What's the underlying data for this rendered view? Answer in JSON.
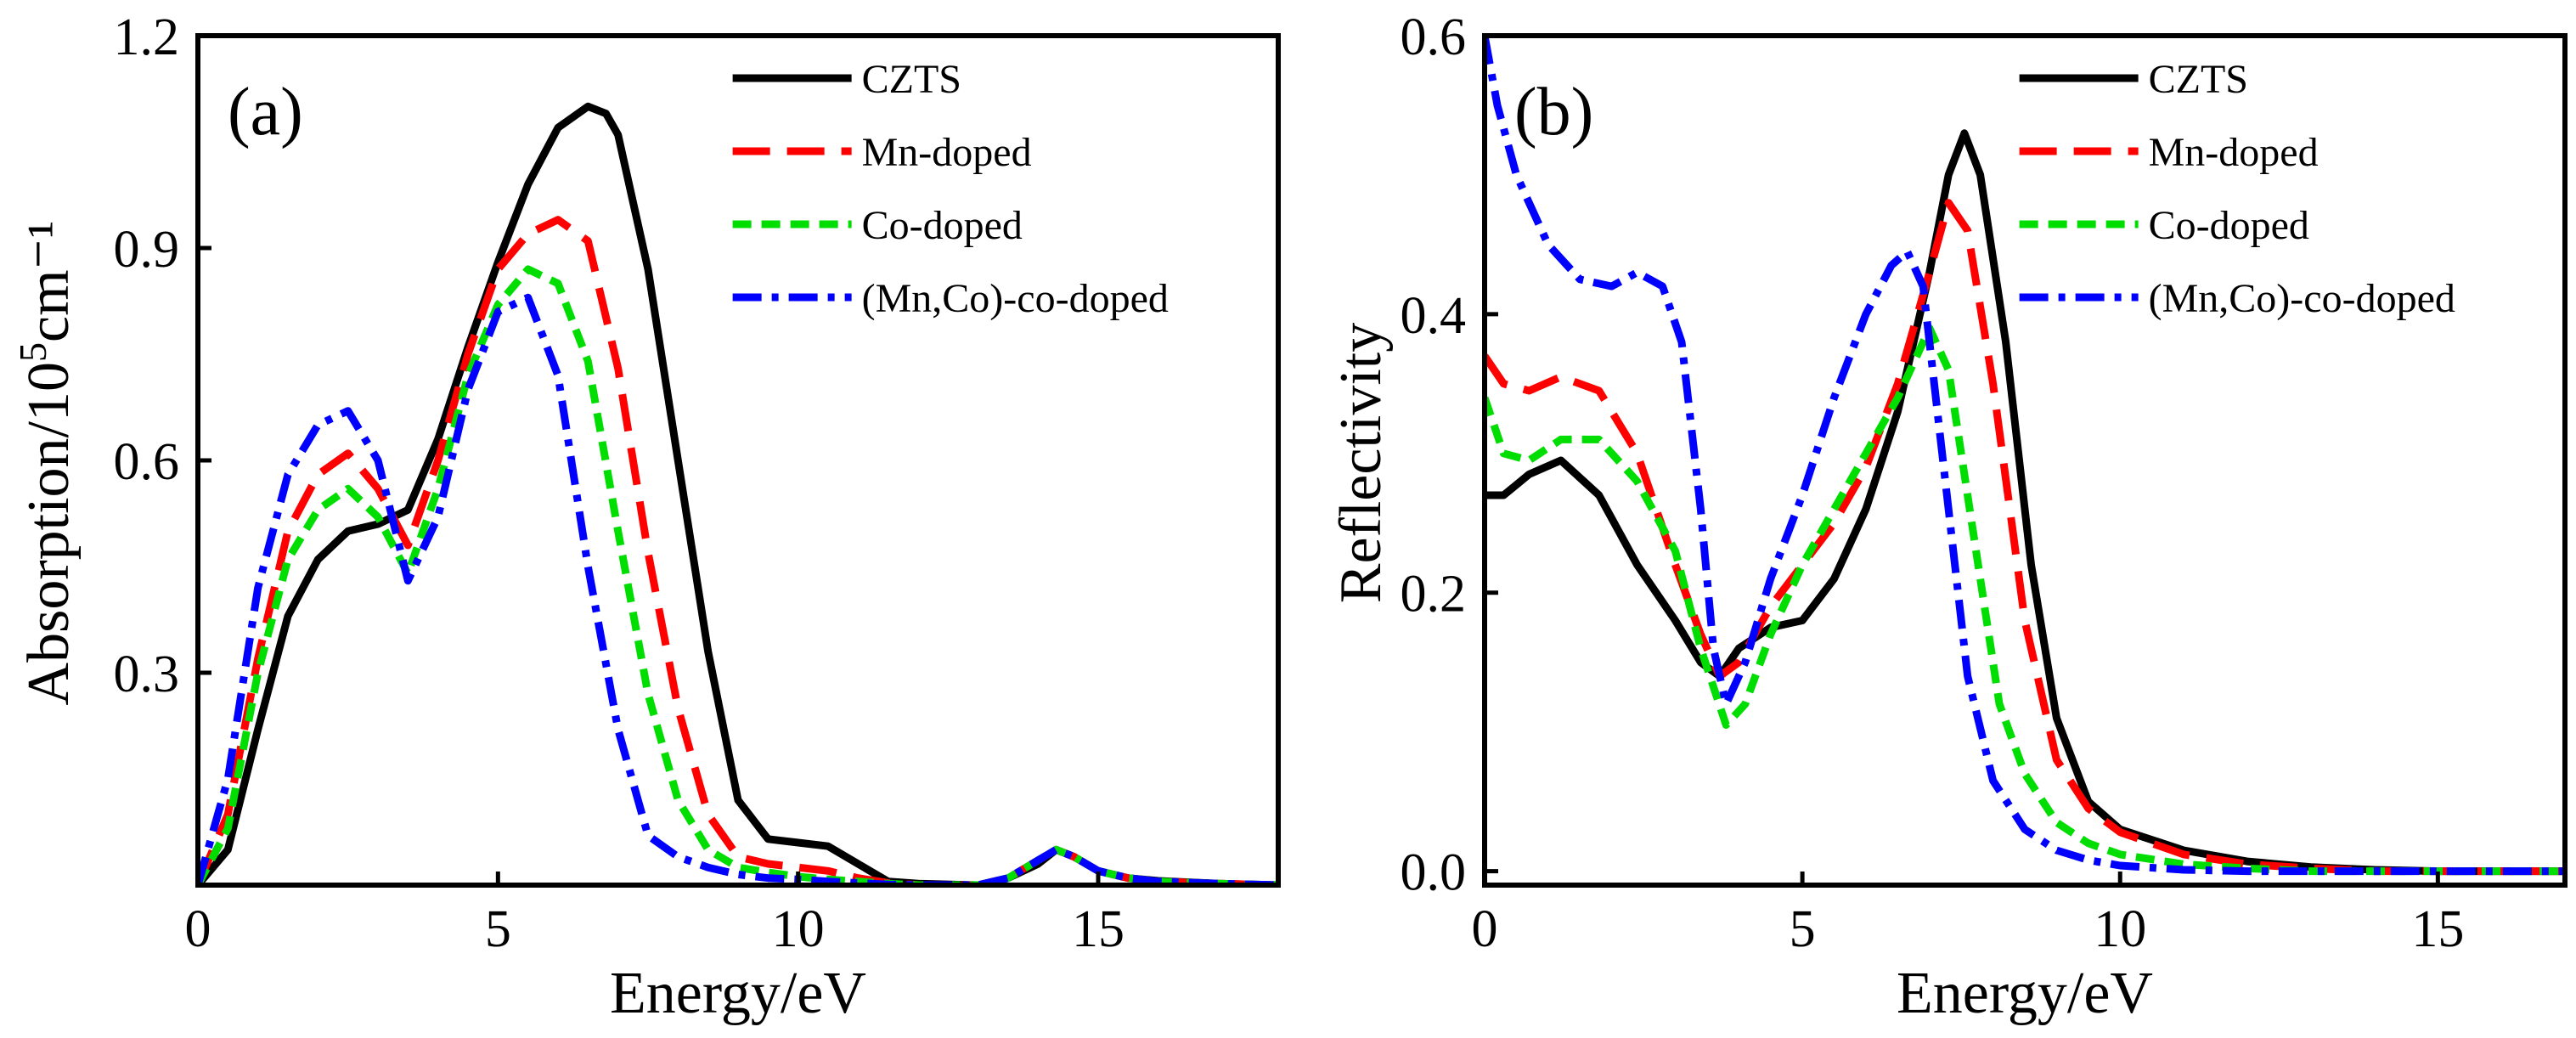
{
  "chart_data": [
    {
      "type": "line",
      "panel_label": "(a)",
      "xlabel": "Energy/eV",
      "ylabel_main": "Absorption/10",
      "ylabel_sup": "5",
      "ylabel_tail": "cm⁻¹",
      "xlim": [
        0,
        18
      ],
      "ylim": [
        0,
        1.2
      ],
      "xticks": [
        0,
        5,
        10,
        15
      ],
      "xtick_labels": [
        "0",
        "5",
        "10",
        "15"
      ],
      "yticks": [
        0.3,
        0.6,
        0.9,
        1.2
      ],
      "ytick_labels": [
        "0.3",
        "0.6",
        "0.9",
        "1.2"
      ],
      "legend_position": "top-right",
      "series": [
        {
          "name": "CZTS",
          "color": "#000000",
          "dash": "solid",
          "x": [
            0,
            0.5,
            1,
            1.5,
            2,
            2.5,
            3,
            3.5,
            4,
            4.5,
            5,
            5.5,
            6,
            6.5,
            6.8,
            7,
            7.5,
            8,
            8.5,
            9,
            9.5,
            10,
            10.5,
            11,
            11.5,
            12,
            13,
            13.5,
            14,
            14.3,
            14.6,
            15,
            15.5,
            16,
            17,
            18
          ],
          "y": [
            0.0,
            0.05,
            0.22,
            0.38,
            0.46,
            0.5,
            0.51,
            0.53,
            0.63,
            0.76,
            0.88,
            0.99,
            1.07,
            1.1,
            1.09,
            1.06,
            0.87,
            0.6,
            0.33,
            0.12,
            0.065,
            0.06,
            0.055,
            0.03,
            0.005,
            0.002,
            0.0,
            0.01,
            0.03,
            0.05,
            0.04,
            0.02,
            0.01,
            0.006,
            0.002,
            0.0
          ]
        },
        {
          "name": "Mn-doped",
          "color": "#ff0000",
          "dash": "longdash",
          "x": [
            0,
            0.5,
            1,
            1.5,
            2,
            2.5,
            3,
            3.5,
            4,
            4.5,
            5,
            5.5,
            6,
            6.5,
            7,
            7.5,
            8,
            8.5,
            9,
            9.5,
            10,
            10.5,
            11,
            11.5,
            12,
            13,
            13.5,
            14,
            14.3,
            14.6,
            15,
            15.5,
            16,
            17,
            18
          ],
          "y": [
            0.0,
            0.1,
            0.32,
            0.5,
            0.58,
            0.61,
            0.56,
            0.48,
            0.6,
            0.75,
            0.87,
            0.92,
            0.94,
            0.91,
            0.73,
            0.47,
            0.25,
            0.1,
            0.04,
            0.03,
            0.025,
            0.02,
            0.01,
            0.003,
            0.0,
            0.0,
            0.01,
            0.035,
            0.05,
            0.04,
            0.02,
            0.01,
            0.005,
            0.002,
            0.0
          ]
        },
        {
          "name": "Co-doped",
          "color": "#00dd00",
          "dash": "shortdash",
          "x": [
            0,
            0.5,
            1,
            1.5,
            2,
            2.5,
            3,
            3.5,
            4,
            4.5,
            5,
            5.5,
            6,
            6.5,
            7,
            7.5,
            8,
            8.5,
            9,
            9.5,
            10,
            10.5,
            11,
            11.5,
            12,
            13,
            13.5,
            14,
            14.3,
            14.6,
            15,
            15.5,
            16,
            17,
            18
          ],
          "y": [
            0.0,
            0.08,
            0.3,
            0.46,
            0.53,
            0.56,
            0.52,
            0.44,
            0.56,
            0.72,
            0.82,
            0.87,
            0.85,
            0.74,
            0.5,
            0.27,
            0.12,
            0.05,
            0.025,
            0.018,
            0.012,
            0.008,
            0.005,
            0.002,
            0.0,
            0.0,
            0.01,
            0.035,
            0.05,
            0.04,
            0.02,
            0.01,
            0.005,
            0.002,
            0.0
          ]
        },
        {
          "name": "(Mn,Co)-co-doped",
          "color": "#0000ff",
          "dash": "dashdot",
          "x": [
            0,
            0.5,
            1,
            1.5,
            2,
            2.5,
            3,
            3.5,
            4,
            4.5,
            5,
            5.5,
            6,
            6.5,
            7,
            7.5,
            8,
            8.5,
            9,
            9.5,
            10,
            10.5,
            11,
            11.5,
            12,
            13,
            13.5,
            14,
            14.3,
            14.6,
            15,
            15.5,
            16,
            17,
            18
          ],
          "y": [
            0.0,
            0.15,
            0.42,
            0.58,
            0.65,
            0.67,
            0.6,
            0.43,
            0.52,
            0.7,
            0.81,
            0.83,
            0.72,
            0.45,
            0.22,
            0.07,
            0.04,
            0.025,
            0.015,
            0.01,
            0.008,
            0.005,
            0.003,
            0.001,
            0.0,
            0.0,
            0.01,
            0.035,
            0.05,
            0.04,
            0.02,
            0.01,
            0.005,
            0.002,
            0.0
          ]
        }
      ]
    },
    {
      "type": "line",
      "panel_label": "(b)",
      "xlabel": "Energy/eV",
      "ylabel": "Reflectivity",
      "xlim": [
        0,
        17
      ],
      "ylim": [
        -0.01,
        0.6
      ],
      "xticks": [
        0,
        5,
        10,
        15
      ],
      "xtick_labels": [
        "0",
        "5",
        "10",
        "15"
      ],
      "yticks": [
        0.0,
        0.2,
        0.4,
        0.6
      ],
      "ytick_labels": [
        "0.0",
        "0.2",
        "0.4",
        "0.6"
      ],
      "legend_position": "top-right",
      "series": [
        {
          "name": "CZTS",
          "color": "#000000",
          "dash": "solid",
          "x": [
            0,
            0.3,
            0.7,
            1.2,
            1.8,
            2.4,
            3,
            3.4,
            3.7,
            4,
            4.5,
            5,
            5.5,
            6,
            6.5,
            7,
            7.3,
            7.55,
            7.8,
            8.2,
            8.6,
            9,
            9.5,
            10,
            11,
            12,
            13,
            14,
            15,
            16,
            17
          ],
          "y": [
            0.27,
            0.27,
            0.285,
            0.295,
            0.27,
            0.22,
            0.18,
            0.15,
            0.14,
            0.16,
            0.175,
            0.18,
            0.21,
            0.26,
            0.33,
            0.43,
            0.5,
            0.53,
            0.5,
            0.38,
            0.22,
            0.11,
            0.05,
            0.03,
            0.015,
            0.007,
            0.003,
            0.001,
            0.0,
            0.0,
            0.0
          ]
        },
        {
          "name": "Mn-doped",
          "color": "#ff0000",
          "dash": "longdash",
          "x": [
            0,
            0.3,
            0.7,
            1.2,
            1.8,
            2.4,
            3,
            3.4,
            3.7,
            4,
            4.5,
            5,
            5.5,
            6,
            6.5,
            7,
            7.3,
            7.6,
            8,
            8.5,
            9,
            9.5,
            10,
            11,
            12,
            13,
            14,
            15,
            16,
            17
          ],
          "y": [
            0.37,
            0.35,
            0.345,
            0.355,
            0.345,
            0.3,
            0.22,
            0.17,
            0.14,
            0.15,
            0.19,
            0.22,
            0.25,
            0.29,
            0.35,
            0.43,
            0.48,
            0.46,
            0.35,
            0.18,
            0.08,
            0.045,
            0.028,
            0.012,
            0.005,
            0.002,
            0.0,
            0.0,
            0.0,
            0.0
          ]
        },
        {
          "name": "Co-doped",
          "color": "#00dd00",
          "dash": "shortdash",
          "x": [
            0,
            0.3,
            0.7,
            1.2,
            1.8,
            2.4,
            3,
            3.4,
            3.8,
            4.1,
            4.5,
            5,
            5.5,
            6,
            6.5,
            7,
            7.3,
            7.7,
            8.1,
            8.5,
            9,
            9.5,
            10,
            11,
            12,
            13,
            14,
            15,
            16,
            17
          ],
          "y": [
            0.34,
            0.3,
            0.295,
            0.31,
            0.31,
            0.28,
            0.23,
            0.16,
            0.105,
            0.12,
            0.17,
            0.22,
            0.26,
            0.3,
            0.34,
            0.39,
            0.36,
            0.24,
            0.12,
            0.07,
            0.035,
            0.02,
            0.012,
            0.005,
            0.002,
            0.0,
            0.0,
            0.0,
            0.0,
            0.0
          ]
        },
        {
          "name": "(Mn,Co)-co-doped",
          "color": "#0000ff",
          "dash": "dashdot",
          "x": [
            0,
            0.2,
            0.5,
            1,
            1.5,
            2,
            2.4,
            2.8,
            3.1,
            3.4,
            3.6,
            3.8,
            4.1,
            4.5,
            5,
            5.5,
            6,
            6.4,
            6.65,
            6.9,
            7.2,
            7.6,
            8,
            8.5,
            9,
            9.5,
            10,
            11,
            12,
            13,
            14,
            15,
            16,
            17
          ],
          "y": [
            0.6,
            0.55,
            0.5,
            0.45,
            0.425,
            0.42,
            0.43,
            0.42,
            0.38,
            0.26,
            0.16,
            0.12,
            0.15,
            0.21,
            0.27,
            0.34,
            0.4,
            0.435,
            0.445,
            0.42,
            0.3,
            0.14,
            0.065,
            0.03,
            0.015,
            0.008,
            0.004,
            0.001,
            0.0,
            0.0,
            0.0,
            0.0,
            0.0,
            0.0
          ]
        }
      ]
    }
  ]
}
